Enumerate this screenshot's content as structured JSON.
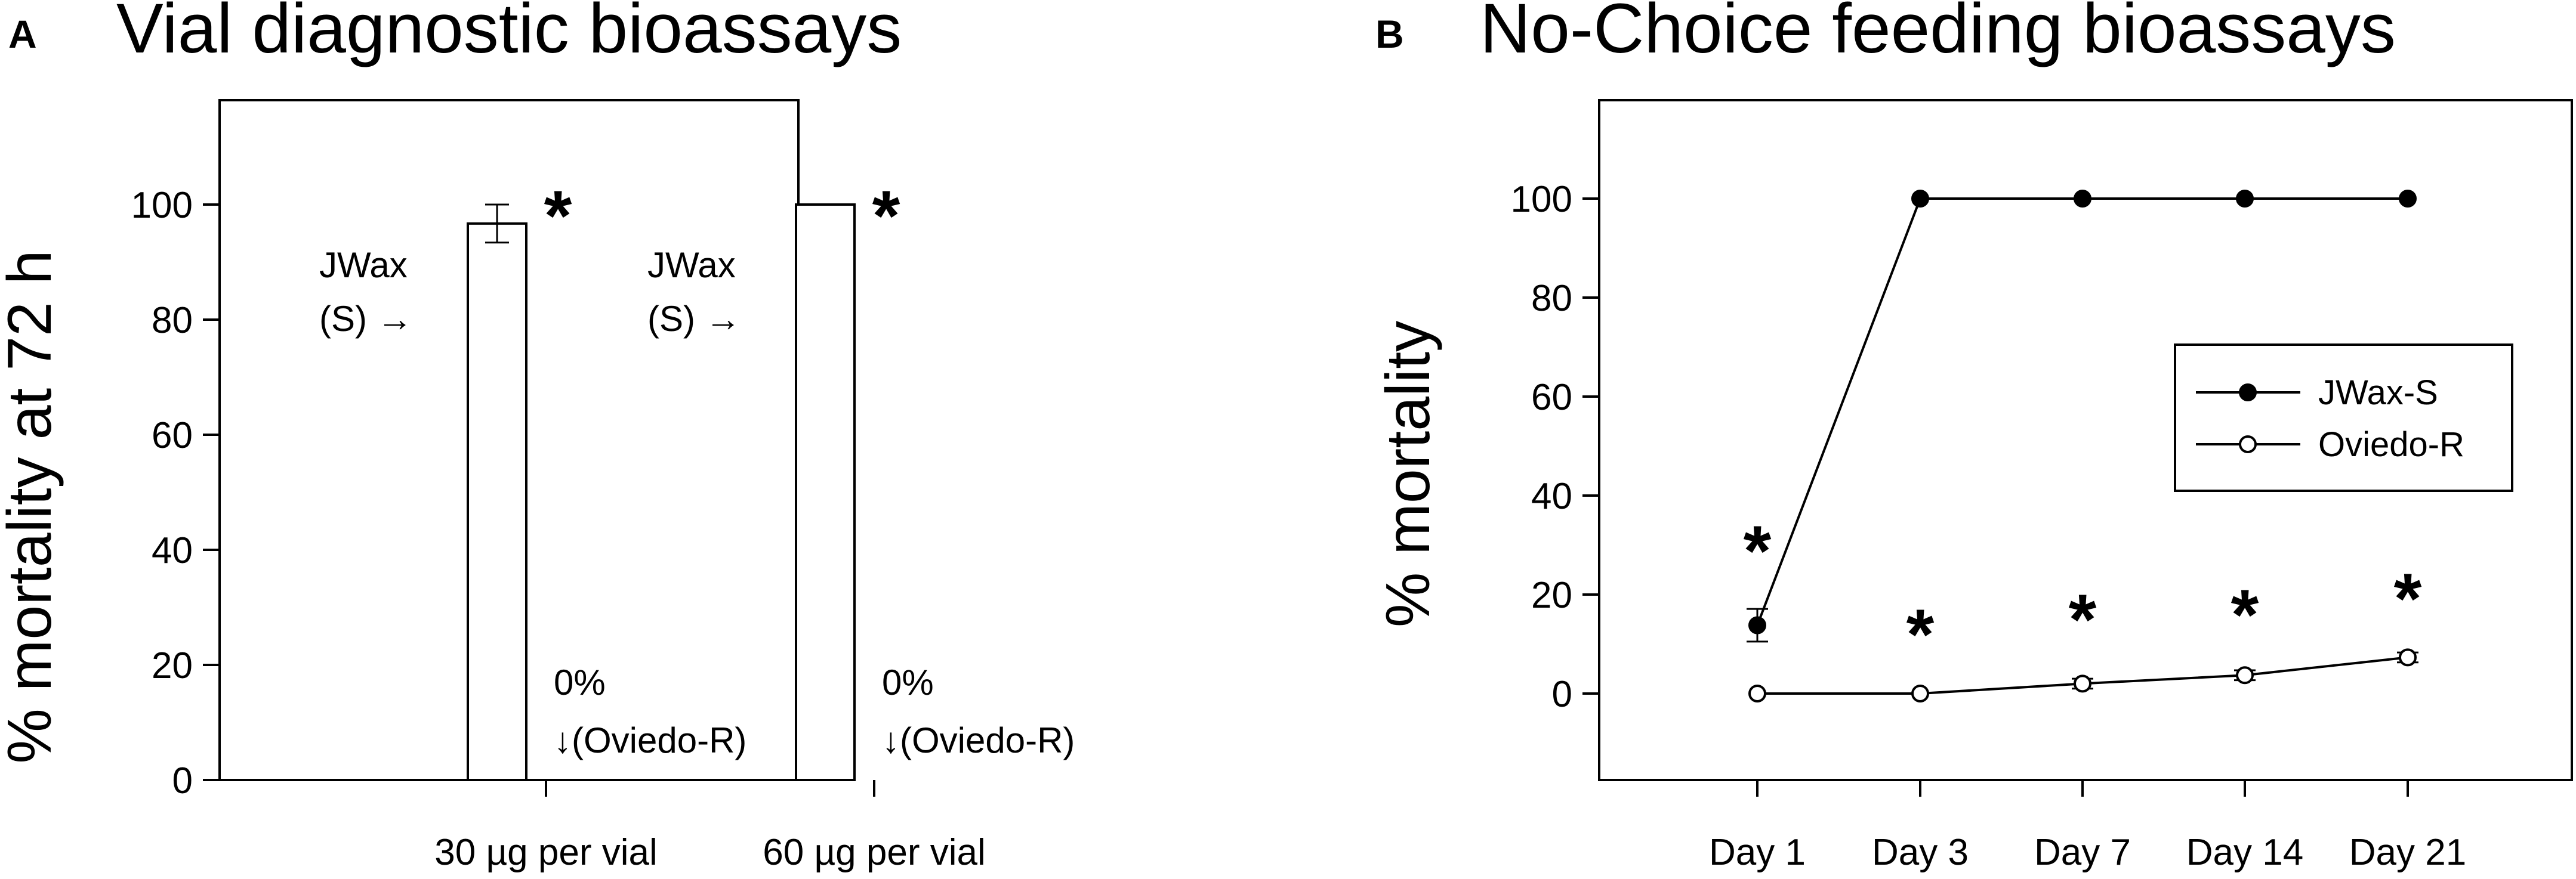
{
  "chart_data": [
    {
      "panel": "A",
      "type": "bar",
      "title": "Vial diagnostic bioassays",
      "xlabel": "",
      "ylabel": "% mortality at 72 h",
      "ylim": [
        0,
        120
      ],
      "yticks": [
        0,
        20,
        40,
        60,
        80,
        100
      ],
      "categories": [
        "30 µg per vial",
        "60 µg per vial"
      ],
      "series": [
        {
          "name": "JWax (S)",
          "values": [
            96.7,
            100
          ],
          "errors": [
            3.3,
            0
          ]
        },
        {
          "name": "Oviedo-R",
          "values": [
            0,
            0
          ],
          "errors": [
            0,
            0
          ]
        }
      ],
      "annotations": {
        "jwax_line1": "JWax",
        "jwax_line2": "(S) →",
        "oviedo_line1": "0%",
        "oviedo_line2": "↓(Oviedo-R)",
        "significance": "*"
      }
    },
    {
      "panel": "B",
      "type": "line",
      "title": "No-Choice feeding bioassays",
      "xlabel": "",
      "ylabel": "% mortality",
      "ylim": [
        -20,
        120
      ],
      "yticks": [
        0,
        20,
        40,
        60,
        80,
        100
      ],
      "categories": [
        "Day 1",
        "Day 3",
        "Day 7",
        "Day 14",
        "Day 21"
      ],
      "series": [
        {
          "name": "JWax-S",
          "marker": "filled-circle",
          "values": [
            13.8,
            100,
            100,
            100,
            100
          ],
          "errors": [
            3.3,
            0,
            0,
            0,
            0
          ]
        },
        {
          "name": "Oviedo-R",
          "marker": "open-circle",
          "values": [
            0,
            0,
            2,
            3.7,
            7.3
          ],
          "errors": [
            0,
            0,
            1,
            1,
            1
          ]
        }
      ],
      "significance": [
        "*",
        "*",
        "*",
        "*",
        "*"
      ],
      "legend_position": "center-right"
    }
  ]
}
